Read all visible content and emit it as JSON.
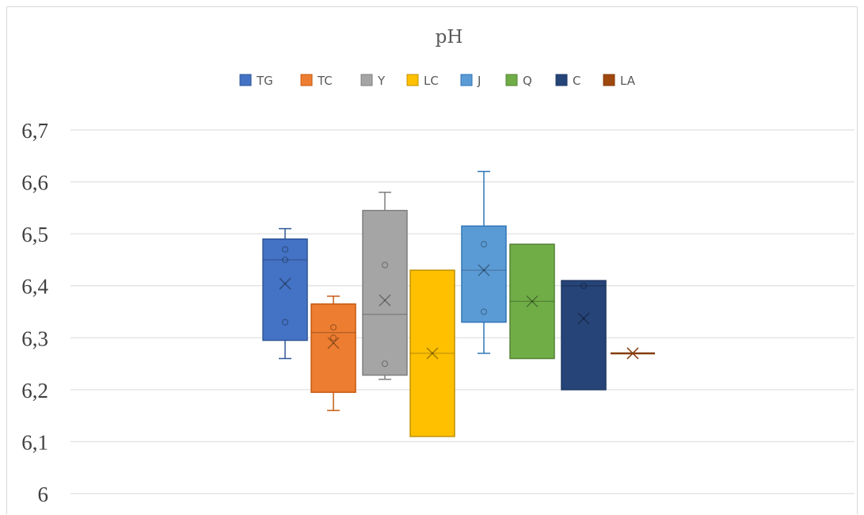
{
  "chart_data": {
    "type": "boxplot",
    "title": "pH",
    "ylim": [
      6,
      6.7
    ],
    "yticks": [
      "6",
      "6,1",
      "6,2",
      "6,3",
      "6,4",
      "6,5",
      "6,6",
      "6,7"
    ],
    "grid": true,
    "legend_position": "top",
    "series": [
      {
        "name": "TG",
        "color": "#4472C4",
        "stroke": "#2F5597",
        "min": 6.26,
        "q1": 6.295,
        "median": 6.45,
        "q3": 6.49,
        "max": 6.51,
        "mean": 6.404,
        "points": [
          6.47,
          6.45,
          6.33
        ]
      },
      {
        "name": "TC",
        "color": "#ED7D31",
        "stroke": "#C55A11",
        "min": 6.16,
        "q1": 6.195,
        "median": 6.31,
        "q3": 6.365,
        "max": 6.38,
        "mean": 6.29,
        "points": [
          6.32,
          6.3
        ]
      },
      {
        "name": "Y",
        "color": "#A5A5A5",
        "stroke": "#7F7F7F",
        "min": 6.22,
        "q1": 6.228,
        "median": 6.345,
        "q3": 6.545,
        "max": 6.58,
        "mean": 6.372,
        "points": [
          6.44,
          6.25
        ]
      },
      {
        "name": "LC",
        "color": "#FFC000",
        "stroke": "#BF9000",
        "min": 6.11,
        "q1": 6.11,
        "median": 6.27,
        "q3": 6.43,
        "max": 6.43,
        "mean": 6.27,
        "points": []
      },
      {
        "name": "J",
        "color": "#5B9BD5",
        "stroke": "#2E75B6",
        "min": 6.27,
        "q1": 6.33,
        "median": 6.43,
        "q3": 6.515,
        "max": 6.62,
        "mean": 6.43,
        "points": [
          6.48,
          6.35
        ]
      },
      {
        "name": "Q",
        "color": "#70AD47",
        "stroke": "#548235",
        "min": 6.26,
        "q1": 6.26,
        "median": 6.37,
        "q3": 6.48,
        "max": 6.48,
        "mean": 6.37,
        "points": []
      },
      {
        "name": "C",
        "color": "#264478",
        "stroke": "#1F3864",
        "min": 6.2,
        "q1": 6.2,
        "median": 6.4,
        "q3": 6.41,
        "max": 6.41,
        "mean": 6.337,
        "points": [
          6.4
        ]
      },
      {
        "name": "LA",
        "color": "#9E480E",
        "stroke": "#843C0C",
        "min": 6.27,
        "q1": 6.27,
        "median": 6.27,
        "q3": 6.27,
        "max": 6.27,
        "mean": 6.27,
        "points": []
      }
    ]
  }
}
